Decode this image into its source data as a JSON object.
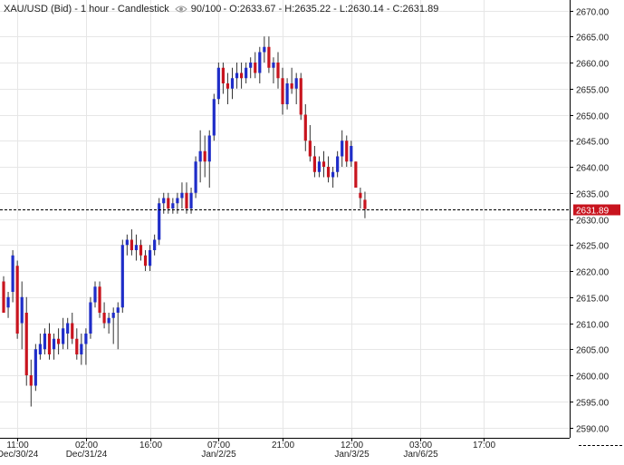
{
  "header": {
    "symbol": "XAU/USD (Bid) - 1 hour - Candlestick",
    "visible_count": "90/100",
    "ohlc": "- O:2633.67 - H:2635.22 - L:2630.14 - C:2631.89",
    "eye_icon": "eye-icon"
  },
  "colors": {
    "up": "#1f2dc8",
    "down": "#c8141e",
    "grid": "#e6e6e6",
    "axis": "#000000",
    "price_line": "#000000",
    "price_label_bg": "#c8141e",
    "price_label_fg": "#ffffff"
  },
  "chart_data": {
    "type": "candlestick",
    "y_ticks": [
      2590,
      2595,
      2600,
      2605,
      2610,
      2615,
      2620,
      2625,
      2630,
      2635,
      2640,
      2645,
      2650,
      2655,
      2660,
      2665,
      2670
    ],
    "ylim": [
      2588,
      2672
    ],
    "y_tick_format": "2 decimals",
    "last_price": 2631.89,
    "last_price_label": "2631.89",
    "x_tick_labels": [
      {
        "time": "11:00",
        "date": "Dec/30/24",
        "index": 3
      },
      {
        "time": "02:00",
        "date": "Dec/31/24",
        "index": 18
      },
      {
        "time": "16:00",
        "date": "",
        "index": 32
      },
      {
        "time": "07:00",
        "date": "Jan/2/25",
        "index": 47
      },
      {
        "time": "21:00",
        "date": "",
        "index": 61
      },
      {
        "time": "12:00",
        "date": "Jan/3/25",
        "index": 76
      },
      {
        "time": "03:00",
        "date": "Jan/6/25",
        "index": 91
      },
      {
        "time": "17:00",
        "date": "",
        "index": 105
      }
    ],
    "candles": [
      {
        "o": 2618,
        "h": 2619,
        "l": 2612,
        "c": 2612
      },
      {
        "o": 2613,
        "h": 2616,
        "l": 2611,
        "c": 2615
      },
      {
        "o": 2616,
        "h": 2624,
        "l": 2614,
        "c": 2623
      },
      {
        "o": 2621,
        "h": 2622,
        "l": 2607,
        "c": 2608
      },
      {
        "o": 2610,
        "h": 2618,
        "l": 2605,
        "c": 2615
      },
      {
        "o": 2612,
        "h": 2615,
        "l": 2598,
        "c": 2600
      },
      {
        "o": 2600,
        "h": 2603,
        "l": 2594,
        "c": 2598
      },
      {
        "o": 2598,
        "h": 2606,
        "l": 2597,
        "c": 2605
      },
      {
        "o": 2604,
        "h": 2608,
        "l": 2603,
        "c": 2606
      },
      {
        "o": 2605,
        "h": 2609,
        "l": 2604,
        "c": 2608
      },
      {
        "o": 2608,
        "h": 2610,
        "l": 2603,
        "c": 2604
      },
      {
        "o": 2605,
        "h": 2608,
        "l": 2603,
        "c": 2607
      },
      {
        "o": 2607,
        "h": 2609,
        "l": 2604,
        "c": 2606
      },
      {
        "o": 2606,
        "h": 2611,
        "l": 2605,
        "c": 2609
      },
      {
        "o": 2608,
        "h": 2611,
        "l": 2605,
        "c": 2610
      },
      {
        "o": 2610,
        "h": 2612,
        "l": 2606,
        "c": 2607
      },
      {
        "o": 2607,
        "h": 2609,
        "l": 2603,
        "c": 2604
      },
      {
        "o": 2604,
        "h": 2608,
        "l": 2602,
        "c": 2606
      },
      {
        "o": 2606,
        "h": 2609,
        "l": 2602,
        "c": 2608
      },
      {
        "o": 2608,
        "h": 2615,
        "l": 2607,
        "c": 2614
      },
      {
        "o": 2614,
        "h": 2618,
        "l": 2613,
        "c": 2617
      },
      {
        "o": 2617,
        "h": 2618,
        "l": 2611,
        "c": 2612
      },
      {
        "o": 2612,
        "h": 2614,
        "l": 2609,
        "c": 2610
      },
      {
        "o": 2610,
        "h": 2612,
        "l": 2608,
        "c": 2611
      },
      {
        "o": 2611,
        "h": 2613,
        "l": 2606,
        "c": 2612
      },
      {
        "o": 2612,
        "h": 2614,
        "l": 2605,
        "c": 2613
      },
      {
        "o": 2613,
        "h": 2626,
        "l": 2612,
        "c": 2625
      },
      {
        "o": 2625,
        "h": 2627,
        "l": 2623,
        "c": 2626
      },
      {
        "o": 2626,
        "h": 2628,
        "l": 2623,
        "c": 2624
      },
      {
        "o": 2624,
        "h": 2627,
        "l": 2622,
        "c": 2625
      },
      {
        "o": 2625,
        "h": 2626,
        "l": 2622,
        "c": 2623
      },
      {
        "o": 2623,
        "h": 2624,
        "l": 2620,
        "c": 2621
      },
      {
        "o": 2621,
        "h": 2625,
        "l": 2620,
        "c": 2624
      },
      {
        "o": 2624,
        "h": 2627,
        "l": 2623,
        "c": 2626
      },
      {
        "o": 2626,
        "h": 2634,
        "l": 2625,
        "c": 2633
      },
      {
        "o": 2633,
        "h": 2635,
        "l": 2631,
        "c": 2634
      },
      {
        "o": 2634,
        "h": 2635,
        "l": 2631,
        "c": 2632
      },
      {
        "o": 2632,
        "h": 2634,
        "l": 2631,
        "c": 2633
      },
      {
        "o": 2633,
        "h": 2635,
        "l": 2631,
        "c": 2634
      },
      {
        "o": 2634,
        "h": 2637,
        "l": 2632,
        "c": 2635
      },
      {
        "o": 2635,
        "h": 2637,
        "l": 2631,
        "c": 2632
      },
      {
        "o": 2632,
        "h": 2636,
        "l": 2631,
        "c": 2635
      },
      {
        "o": 2635,
        "h": 2642,
        "l": 2634,
        "c": 2641
      },
      {
        "o": 2641,
        "h": 2647,
        "l": 2637,
        "c": 2643
      },
      {
        "o": 2643,
        "h": 2646,
        "l": 2638,
        "c": 2641
      },
      {
        "o": 2641,
        "h": 2647,
        "l": 2636,
        "c": 2646
      },
      {
        "o": 2646,
        "h": 2654,
        "l": 2645,
        "c": 2653
      },
      {
        "o": 2653,
        "h": 2660,
        "l": 2652,
        "c": 2659
      },
      {
        "o": 2659,
        "h": 2660,
        "l": 2654,
        "c": 2656
      },
      {
        "o": 2656,
        "h": 2658,
        "l": 2652,
        "c": 2655
      },
      {
        "o": 2655,
        "h": 2659,
        "l": 2653,
        "c": 2657
      },
      {
        "o": 2657,
        "h": 2660,
        "l": 2655,
        "c": 2658
      },
      {
        "o": 2658,
        "h": 2660,
        "l": 2655,
        "c": 2657
      },
      {
        "o": 2657,
        "h": 2660,
        "l": 2656,
        "c": 2659
      },
      {
        "o": 2659,
        "h": 2661,
        "l": 2657,
        "c": 2660
      },
      {
        "o": 2660,
        "h": 2662,
        "l": 2657,
        "c": 2658
      },
      {
        "o": 2658,
        "h": 2663,
        "l": 2656,
        "c": 2662
      },
      {
        "o": 2662,
        "h": 2665,
        "l": 2660,
        "c": 2663
      },
      {
        "o": 2663,
        "h": 2665,
        "l": 2658,
        "c": 2659
      },
      {
        "o": 2659,
        "h": 2661,
        "l": 2656,
        "c": 2660
      },
      {
        "o": 2660,
        "h": 2662,
        "l": 2655,
        "c": 2657
      },
      {
        "o": 2657,
        "h": 2659,
        "l": 2650,
        "c": 2652
      },
      {
        "o": 2652,
        "h": 2657,
        "l": 2651,
        "c": 2656
      },
      {
        "o": 2656,
        "h": 2659,
        "l": 2654,
        "c": 2655
      },
      {
        "o": 2655,
        "h": 2658,
        "l": 2652,
        "c": 2657
      },
      {
        "o": 2657,
        "h": 2658,
        "l": 2649,
        "c": 2650
      },
      {
        "o": 2650,
        "h": 2652,
        "l": 2643,
        "c": 2645
      },
      {
        "o": 2645,
        "h": 2648,
        "l": 2641,
        "c": 2642
      },
      {
        "o": 2642,
        "h": 2644,
        "l": 2638,
        "c": 2639
      },
      {
        "o": 2639,
        "h": 2642,
        "l": 2638,
        "c": 2641
      },
      {
        "o": 2641,
        "h": 2643,
        "l": 2638,
        "c": 2640
      },
      {
        "o": 2640,
        "h": 2642,
        "l": 2637,
        "c": 2638
      },
      {
        "o": 2638,
        "h": 2640,
        "l": 2636,
        "c": 2639
      },
      {
        "o": 2639,
        "h": 2643,
        "l": 2638,
        "c": 2642
      },
      {
        "o": 2642,
        "h": 2647,
        "l": 2640,
        "c": 2645
      },
      {
        "o": 2645,
        "h": 2646,
        "l": 2640,
        "c": 2641
      },
      {
        "o": 2641,
        "h": 2645,
        "l": 2640,
        "c": 2644
      },
      {
        "o": 2641,
        "h": 2641,
        "l": 2636,
        "c": 2636
      },
      {
        "o": 2635,
        "h": 2636,
        "l": 2632,
        "c": 2634
      },
      {
        "o": 2633.67,
        "h": 2635.22,
        "l": 2630.14,
        "c": 2631.89
      }
    ]
  }
}
